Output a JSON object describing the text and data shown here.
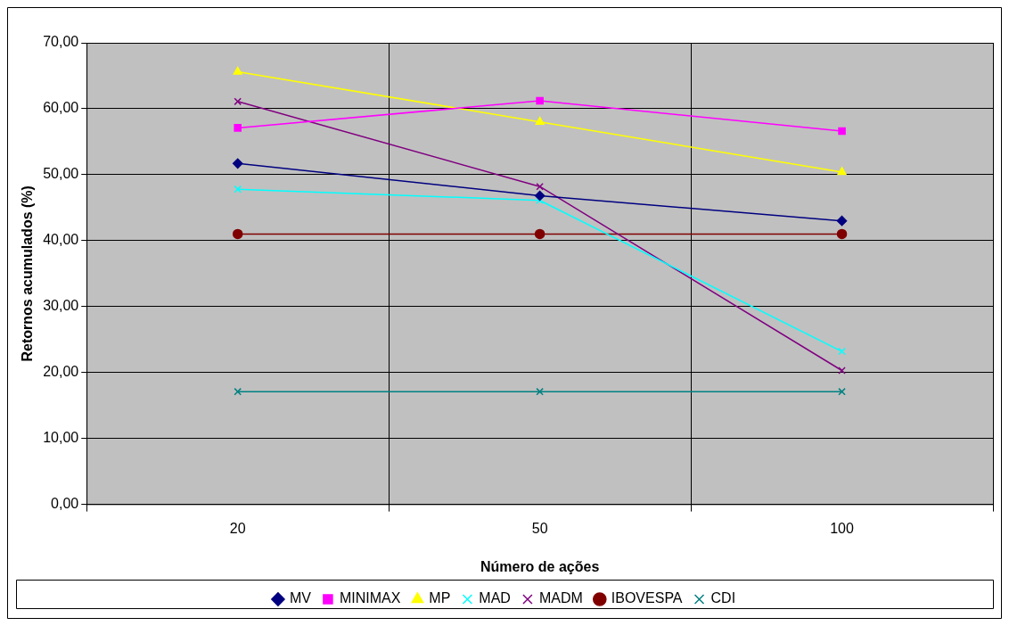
{
  "chart_data": {
    "type": "line",
    "xlabel": "Número de ações",
    "ylabel": "Retornos acumulados (%)",
    "categories": [
      "20",
      "50",
      "100"
    ],
    "series": [
      {
        "name": "MV",
        "color": "#000080",
        "marker": "diamond",
        "values": [
          51.7,
          46.8,
          43.0
        ]
      },
      {
        "name": "MINIMAX",
        "color": "#ff00ff",
        "marker": "square",
        "values": [
          57.1,
          61.2,
          56.6
        ]
      },
      {
        "name": "MP",
        "color": "#ffff00",
        "marker": "triangle",
        "values": [
          65.6,
          58.0,
          50.4
        ]
      },
      {
        "name": "MAD",
        "color": "#00ffff",
        "marker": "cross",
        "values": [
          47.8,
          46.1,
          23.2
        ]
      },
      {
        "name": "MADM",
        "color": "#800080",
        "marker": "cross",
        "values": [
          61.1,
          48.2,
          20.3
        ]
      },
      {
        "name": "IBOVESPA",
        "color": "#800000",
        "marker": "circle",
        "values": [
          41.0,
          41.0,
          41.0
        ]
      },
      {
        "name": "CDI",
        "color": "#008080",
        "marker": "cross",
        "values": [
          17.1,
          17.1,
          17.1
        ]
      }
    ],
    "ylim": [
      0,
      70
    ],
    "yticks": [
      {
        "value": 0,
        "label": "0,00"
      },
      {
        "value": 10,
        "label": "10,00"
      },
      {
        "value": 20,
        "label": "20,00"
      },
      {
        "value": 30,
        "label": "30,00"
      },
      {
        "value": 40,
        "label": "40,00"
      },
      {
        "value": 50,
        "label": "50,00"
      },
      {
        "value": 60,
        "label": "60,00"
      },
      {
        "value": 70,
        "label": "70,00"
      }
    ],
    "grid": true,
    "legend": "bottom"
  }
}
